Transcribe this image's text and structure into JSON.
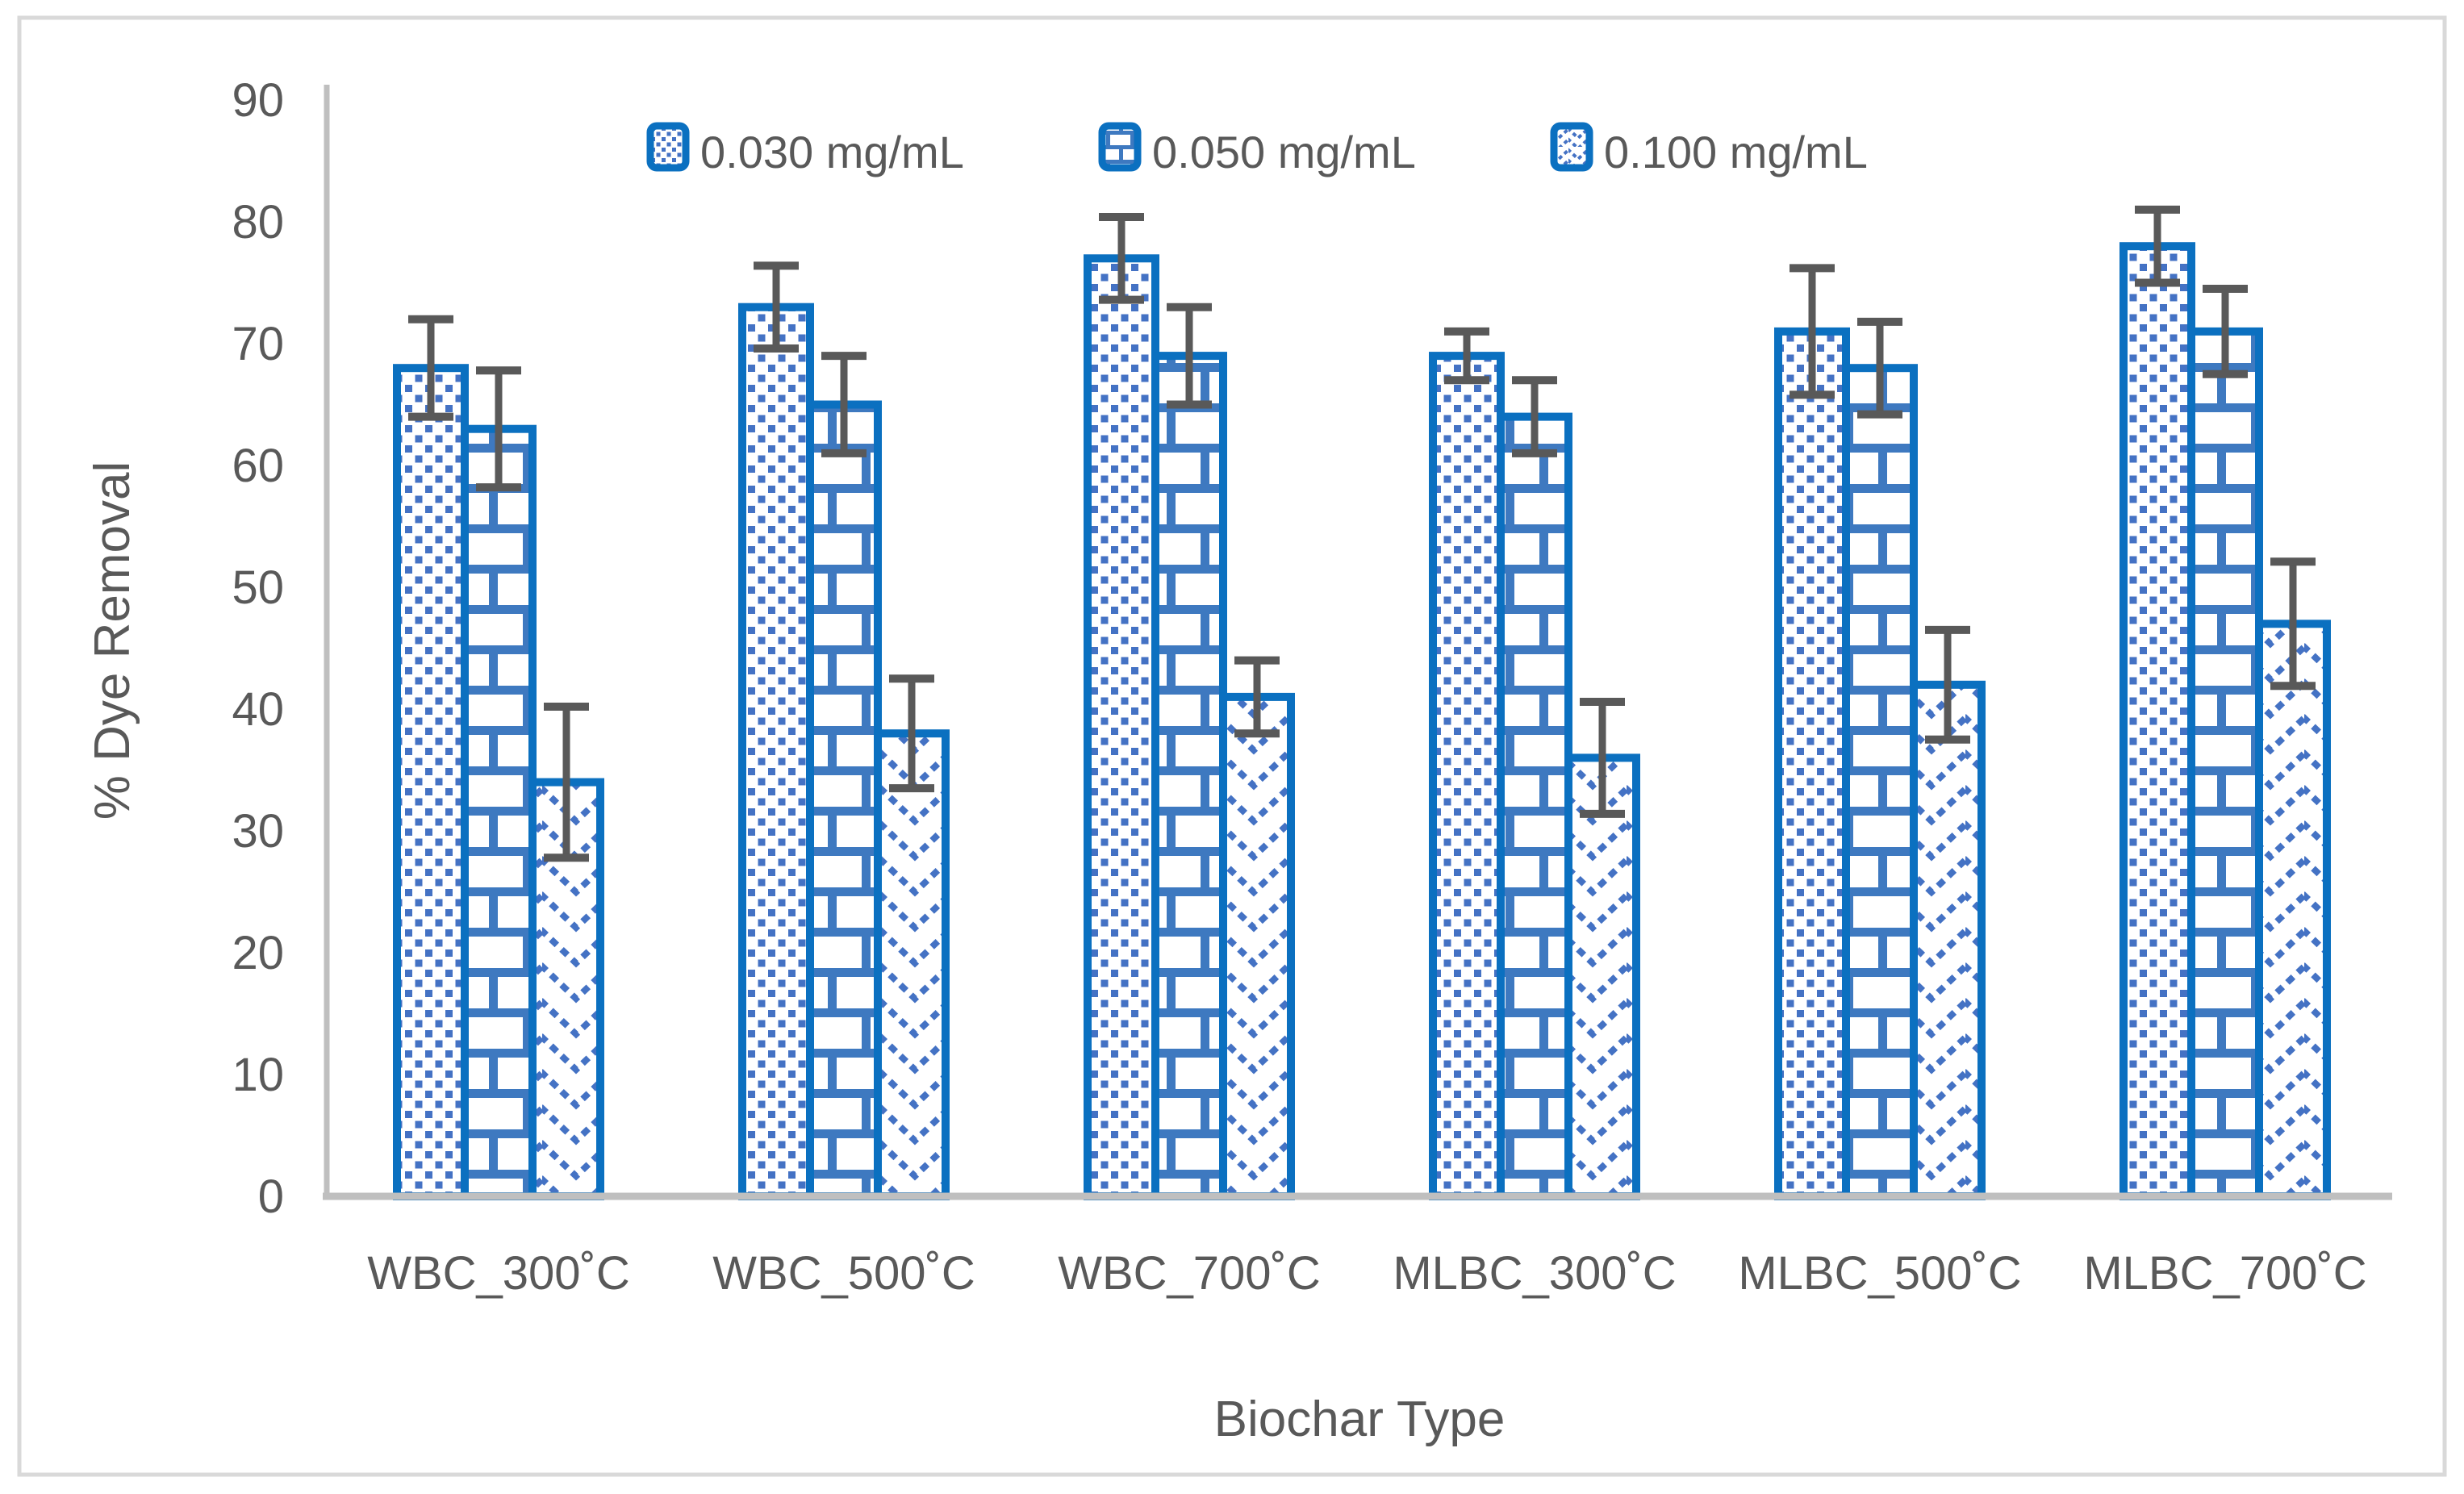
{
  "figure": {
    "background": "#FFFFFF",
    "border_color": "#D9D9D9"
  },
  "colors": {
    "bar_border": "#0B70C0",
    "pattern_dots": "#4472C4",
    "pattern_brick": "#3E79C0",
    "pattern_zigzag": "#4472C4",
    "error_bar": "#595959",
    "axis_line": "#BFBFBF",
    "text": "#595959"
  },
  "chart_data": {
    "type": "bar",
    "title": "",
    "xlabel": "Biochar Type",
    "ylabel": "% Dye Removal",
    "categories": [
      "WBC_300˚C",
      "WBC_500˚C",
      "WBC_700˚C",
      "MLBC_300˚C",
      "MLBC_500˚C",
      "MLBC_700˚C"
    ],
    "series": [
      {
        "name": "0.030 mg/mL",
        "pattern": "dots",
        "values": [
          68,
          73,
          77,
          69,
          71,
          78
        ],
        "errors": [
          4,
          3.4,
          3.4,
          2,
          5.2,
          3
        ]
      },
      {
        "name": "0.050 mg/mL",
        "pattern": "brick",
        "values": [
          63,
          65,
          69,
          64,
          68,
          71
        ],
        "errors": [
          4.8,
          4,
          4,
          3,
          3.8,
          3.5
        ]
      },
      {
        "name": "0.100 mg/mL",
        "pattern": "zigzag",
        "values": [
          34,
          38,
          41,
          36,
          42,
          47
        ],
        "errors": [
          6.2,
          4.5,
          3,
          4.6,
          4.5,
          5.1
        ]
      }
    ],
    "ylim": [
      0,
      90
    ],
    "yticks": [
      0,
      10,
      20,
      30,
      40,
      50,
      60,
      70,
      80,
      90
    ],
    "grid": false,
    "legend_position": "top"
  }
}
